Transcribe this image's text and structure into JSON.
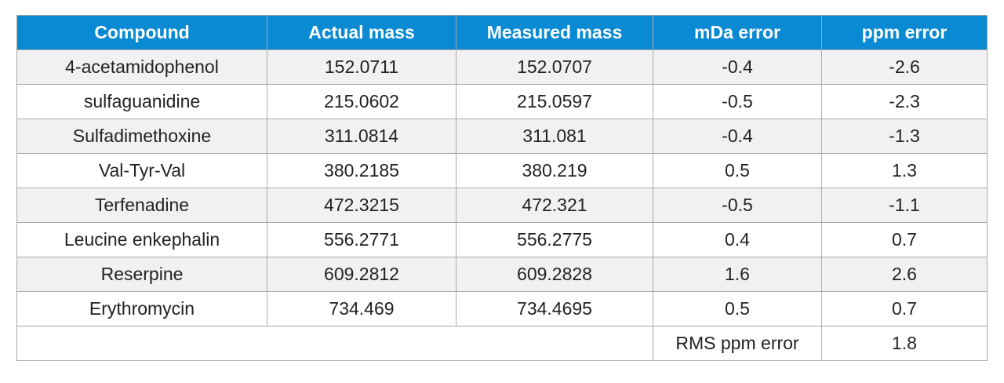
{
  "table": {
    "headers": [
      "Compound",
      "Actual mass",
      "Measured mass",
      "mDa error",
      "ppm error"
    ],
    "rows": [
      [
        "4-acetamidophenol",
        "152.0711",
        "152.0707",
        "-0.4",
        "-2.6"
      ],
      [
        "sulfaguanidine",
        "215.0602",
        "215.0597",
        "-0.5",
        "-2.3"
      ],
      [
        "Sulfadimethoxine",
        "311.0814",
        "311.081",
        "-0.4",
        "-1.3"
      ],
      [
        "Val-Tyr-Val",
        "380.2185",
        "380.219",
        "0.5",
        "1.3"
      ],
      [
        "Terfenadine",
        "472.3215",
        "472.321",
        "-0.5",
        "-1.1"
      ],
      [
        "Leucine enkephalin",
        "556.2771",
        "556.2775",
        "0.4",
        "0.7"
      ],
      [
        "Reserpine",
        "609.2812",
        "609.2828",
        "1.6",
        "2.6"
      ],
      [
        "Erythromycin",
        "734.469",
        "734.4695",
        "0.5",
        "0.7"
      ]
    ],
    "footer": {
      "label": "RMS ppm error",
      "value": "1.8"
    }
  },
  "colors": {
    "header_bg": "#0a8ad3",
    "header_text": "#ffffff",
    "row_shade": "#f1f1f4",
    "border": "#a9a9a9"
  }
}
